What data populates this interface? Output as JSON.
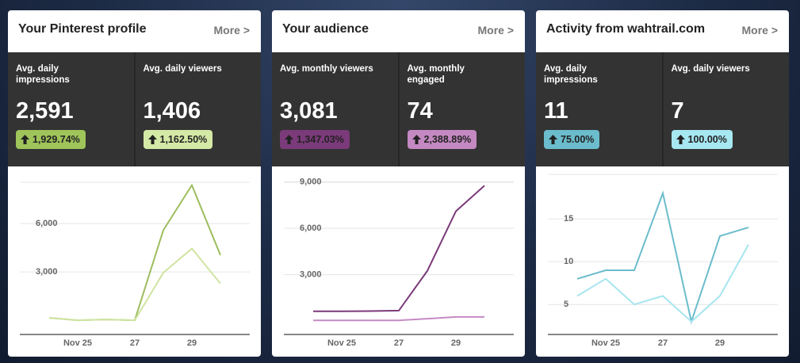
{
  "cards": [
    {
      "title": "Your Pinterest profile",
      "more": "More >",
      "stats": [
        {
          "label": "Avg. daily impressions",
          "value": "2,591",
          "change": "1,929.74%"
        },
        {
          "label": "Avg. daily viewers",
          "value": "1,406",
          "change": "1,162.50%"
        }
      ]
    },
    {
      "title": "Your audience",
      "more": "More >",
      "stats": [
        {
          "label": "Avg. monthly viewers",
          "value": "3,081",
          "change": "1,347.03%"
        },
        {
          "label": "Avg. monthly engaged",
          "value": "74",
          "change": "2,388.89%"
        }
      ]
    },
    {
      "title": "Activity from wahtrail.com",
      "more": "More >",
      "stats": [
        {
          "label": "Avg. daily impressions",
          "value": "11",
          "change": "75.00%"
        },
        {
          "label": "Avg. daily viewers",
          "value": "7",
          "change": "100.00%"
        }
      ]
    }
  ],
  "chart_data": [
    {
      "type": "line",
      "categories": [
        null,
        "Nov 25",
        null,
        "27",
        null,
        "29",
        null
      ],
      "series": [
        {
          "name": "Avg. daily impressions",
          "color": "#9dbd5d",
          "values": [
            155,
            0,
            50,
            0,
            5590,
            8380,
            4040
          ]
        },
        {
          "name": "Avg. daily viewers",
          "color": "#d0e4a2",
          "values": [
            150,
            0,
            50,
            0,
            2950,
            4450,
            2280
          ]
        }
      ],
      "ylim": [
        -880,
        9050
      ],
      "yticks": [
        {
          "value": 3000,
          "label": "3,000"
        },
        {
          "value": 6000,
          "label": "6,000"
        }
      ],
      "grid": true
    },
    {
      "type": "line",
      "categories": [
        null,
        "Nov 25",
        null,
        "27",
        null,
        "29",
        null
      ],
      "series": [
        {
          "name": "Avg. monthly viewers",
          "color": "#7b3a7a",
          "values": [
            640,
            640,
            650,
            680,
            3250,
            7100,
            8750
          ]
        },
        {
          "name": "Avg. monthly engaged",
          "color": "#c68bc4",
          "values": [
            50,
            50,
            50,
            50,
            160,
            270,
            270
          ]
        }
      ],
      "ylim": [
        -860,
        9480
      ],
      "yticks": [
        {
          "value": 3000,
          "label": "3,000"
        },
        {
          "value": 6000,
          "label": "6,000"
        },
        {
          "value": 9000,
          "label": "9,000"
        }
      ],
      "grid": true
    },
    {
      "type": "line",
      "categories": [
        null,
        "Nov 25",
        null,
        "27",
        null,
        "29",
        null
      ],
      "series": [
        {
          "name": "Avg. daily impressions",
          "color": "#6bbccc",
          "values": [
            8,
            9,
            9,
            18,
            3,
            13,
            14
          ]
        },
        {
          "name": "Avg. daily viewers",
          "color": "#a7e5ef",
          "values": [
            6,
            8,
            5,
            6,
            3,
            6,
            12
          ]
        }
      ],
      "ylim": [
        1.5,
        20.2
      ],
      "yticks": [
        5,
        10,
        15
      ],
      "grid": true
    }
  ]
}
